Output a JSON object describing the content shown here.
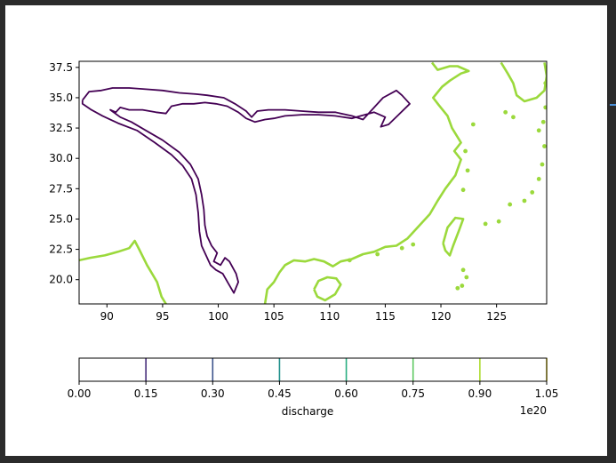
{
  "chart_data": {
    "type": "contour",
    "xlim": [
      87.5,
      129.5
    ],
    "ylim": [
      18.0,
      38.0
    ],
    "x_ticks": [
      90,
      95,
      100,
      105,
      110,
      115,
      120,
      125
    ],
    "y_ticks": [
      20.0,
      22.5,
      25.0,
      27.5,
      30.0,
      32.5,
      35.0,
      37.5
    ],
    "x_tick_labels": [
      "90",
      "95",
      "100",
      "105",
      "110",
      "115",
      "120",
      "125"
    ],
    "y_tick_labels": [
      "20.0",
      "22.5",
      "25.0",
      "27.5",
      "30.0",
      "32.5",
      "35.0",
      "37.5"
    ],
    "grid": false,
    "colorbar": {
      "label": "discharge",
      "offset_text": "1e20",
      "orientation": "horizontal",
      "ticks": [
        0.0,
        0.15,
        0.3,
        0.45,
        0.6,
        0.75,
        0.9,
        1.05
      ],
      "tick_labels": [
        "0.00",
        "0.15",
        "0.30",
        "0.45",
        "0.60",
        "0.75",
        "0.90",
        "1.05"
      ],
      "levels": [
        {
          "value": 0.15,
          "color": "#472d7b"
        },
        {
          "value": 0.3,
          "color": "#3b528b"
        },
        {
          "value": 0.45,
          "color": "#21918c"
        },
        {
          "value": 0.6,
          "color": "#28ae80"
        },
        {
          "value": 0.75,
          "color": "#5ec962"
        },
        {
          "value": 0.9,
          "color": "#addc30"
        },
        {
          "value": 1.05,
          "color": "#fde725"
        }
      ]
    },
    "contours": {
      "inland_basin": {
        "color": "#440154",
        "points": [
          [
            87.8,
            34.8
          ],
          [
            88.4,
            35.5
          ],
          [
            89.5,
            35.6
          ],
          [
            90.5,
            35.8
          ],
          [
            92,
            35.8
          ],
          [
            93.5,
            35.7
          ],
          [
            95,
            35.6
          ],
          [
            96.5,
            35.4
          ],
          [
            98,
            35.3
          ],
          [
            99,
            35.2
          ],
          [
            100.5,
            35
          ],
          [
            101.5,
            34.5
          ],
          [
            102.5,
            33.9
          ],
          [
            103,
            33.4
          ],
          [
            103.5,
            33.9
          ],
          [
            104.5,
            34.0
          ],
          [
            106,
            34.0
          ],
          [
            107.5,
            33.9
          ],
          [
            109,
            33.8
          ],
          [
            110.5,
            33.8
          ],
          [
            112,
            33.5
          ],
          [
            113,
            33.2
          ],
          [
            113.8,
            34.0
          ],
          [
            114.8,
            35.0
          ],
          [
            116.0,
            35.6
          ],
          [
            116.5,
            35.2
          ],
          [
            117.2,
            34.5
          ],
          [
            116.2,
            33.6
          ],
          [
            115.3,
            32.8
          ],
          [
            114.6,
            32.6
          ],
          [
            115.0,
            33.4
          ],
          [
            114.0,
            33.8
          ],
          [
            112.8,
            33.5
          ],
          [
            112.0,
            33.3
          ],
          [
            110.5,
            33.5
          ],
          [
            109.0,
            33.6
          ],
          [
            107.5,
            33.6
          ],
          [
            106.0,
            33.5
          ],
          [
            105.0,
            33.3
          ],
          [
            104.2,
            33.2
          ],
          [
            103.3,
            33.0
          ],
          [
            102.5,
            33.3
          ],
          [
            101.8,
            33.8
          ],
          [
            100.8,
            34.3
          ],
          [
            99.8,
            34.5
          ],
          [
            98.8,
            34.6
          ],
          [
            97.8,
            34.5
          ],
          [
            96.8,
            34.5
          ],
          [
            95.8,
            34.3
          ],
          [
            95.3,
            33.7
          ],
          [
            94.4,
            33.8
          ],
          [
            93.2,
            34.0
          ],
          [
            92.0,
            34.0
          ],
          [
            91.2,
            34.2
          ],
          [
            90.8,
            33.8
          ],
          [
            90.3,
            34.0
          ],
          [
            91.2,
            33.4
          ],
          [
            92.2,
            33.0
          ],
          [
            93.5,
            32.3
          ],
          [
            95.0,
            31.5
          ],
          [
            96.5,
            30.5
          ],
          [
            97.5,
            29.5
          ],
          [
            98.2,
            28.3
          ],
          [
            98.5,
            27.0
          ],
          [
            98.7,
            25.8
          ],
          [
            98.8,
            24.5
          ],
          [
            99.0,
            23.6
          ],
          [
            99.4,
            22.8
          ],
          [
            99.9,
            22.2
          ],
          [
            99.6,
            21.5
          ],
          [
            100.2,
            21.2
          ],
          [
            100.6,
            21.8
          ],
          [
            101.0,
            21.5
          ],
          [
            101.6,
            20.5
          ],
          [
            101.8,
            19.8
          ],
          [
            101.4,
            18.9
          ],
          [
            100.9,
            19.7
          ],
          [
            100.4,
            20.5
          ],
          [
            99.8,
            20.8
          ],
          [
            99.3,
            21.2
          ],
          [
            98.9,
            22.0
          ],
          [
            98.5,
            22.8
          ],
          [
            98.3,
            24.0
          ],
          [
            98.2,
            25.5
          ],
          [
            98.0,
            27.0
          ],
          [
            97.6,
            28.3
          ],
          [
            96.8,
            29.4
          ],
          [
            95.8,
            30.3
          ],
          [
            94.3,
            31.3
          ],
          [
            92.7,
            32.3
          ],
          [
            91.0,
            32.9
          ],
          [
            89.6,
            33.5
          ],
          [
            88.6,
            34.0
          ],
          [
            87.8,
            34.5
          ],
          [
            87.8,
            34.8
          ]
        ]
      },
      "coastline_west": {
        "color": "#9bd93c",
        "points": [
          [
            87.5,
            21.6
          ],
          [
            88.5,
            21.8
          ],
          [
            89.8,
            22.0
          ],
          [
            91.0,
            22.3
          ],
          [
            92.0,
            22.6
          ],
          [
            92.5,
            23.2
          ],
          [
            92.9,
            22.5
          ],
          [
            93.6,
            21.2
          ],
          [
            94.5,
            19.8
          ],
          [
            94.9,
            18.6
          ],
          [
            95.3,
            18.0
          ]
        ]
      },
      "coastline_south": {
        "color": "#9bd93c",
        "points": [
          [
            104.2,
            18.0
          ],
          [
            104.4,
            19.2
          ],
          [
            105.0,
            19.8
          ],
          [
            105.5,
            20.6
          ],
          [
            106.0,
            21.2
          ],
          [
            106.8,
            21.6
          ],
          [
            107.8,
            21.5
          ],
          [
            108.6,
            21.7
          ],
          [
            109.5,
            21.5
          ],
          [
            110.3,
            21.1
          ],
          [
            111.0,
            21.5
          ],
          [
            112.0,
            21.7
          ],
          [
            113.0,
            22.1
          ],
          [
            114.0,
            22.3
          ],
          [
            115.0,
            22.7
          ],
          [
            116.0,
            22.8
          ],
          [
            117.0,
            23.4
          ],
          [
            118.0,
            24.4
          ],
          [
            119.0,
            25.4
          ],
          [
            119.7,
            26.5
          ],
          [
            120.4,
            27.5
          ],
          [
            121.3,
            28.6
          ],
          [
            121.8,
            29.9
          ],
          [
            121.2,
            30.6
          ],
          [
            121.8,
            31.3
          ],
          [
            121.0,
            32.5
          ],
          [
            120.6,
            33.5
          ],
          [
            119.8,
            34.4
          ],
          [
            119.3,
            35.0
          ],
          [
            120.1,
            35.9
          ],
          [
            120.8,
            36.4
          ],
          [
            121.8,
            37.0
          ],
          [
            122.5,
            37.2
          ],
          [
            121.5,
            37.6
          ],
          [
            120.8,
            37.6
          ],
          [
            119.7,
            37.3
          ],
          [
            119.2,
            37.9
          ]
        ]
      },
      "hainan": {
        "color": "#9bd93c",
        "points": [
          [
            108.6,
            19.2
          ],
          [
            109.0,
            19.9
          ],
          [
            109.8,
            20.2
          ],
          [
            110.6,
            20.1
          ],
          [
            111.0,
            19.6
          ],
          [
            110.5,
            18.8
          ],
          [
            109.6,
            18.3
          ],
          [
            108.9,
            18.6
          ],
          [
            108.6,
            19.2
          ]
        ]
      },
      "taiwan": {
        "color": "#9bd93c",
        "points": [
          [
            120.2,
            23.0
          ],
          [
            120.6,
            24.3
          ],
          [
            121.3,
            25.1
          ],
          [
            122.0,
            25.0
          ],
          [
            121.6,
            24.0
          ],
          [
            121.1,
            22.8
          ],
          [
            120.8,
            22.0
          ],
          [
            120.4,
            22.4
          ],
          [
            120.2,
            23.0
          ]
        ]
      },
      "korea_coast": {
        "color": "#9bd93c",
        "points": [
          [
            125.4,
            37.9
          ],
          [
            126.0,
            37.0
          ],
          [
            126.5,
            36.2
          ],
          [
            126.8,
            35.2
          ],
          [
            127.5,
            34.7
          ],
          [
            128.6,
            35.0
          ],
          [
            129.3,
            35.6
          ],
          [
            129.5,
            36.8
          ],
          [
            129.3,
            37.9
          ]
        ]
      },
      "coastal_islands": {
        "color": "#9bd93c",
        "points": [
          [
            122.9,
            32.8
          ],
          [
            122.2,
            30.6
          ],
          [
            122.4,
            29.0
          ],
          [
            122.0,
            27.4
          ],
          [
            121.9,
            19.5
          ],
          [
            122.3,
            20.2
          ],
          [
            121.5,
            19.3
          ],
          [
            122.0,
            20.8
          ],
          [
            124.0,
            24.6
          ],
          [
            125.2,
            24.8
          ],
          [
            126.2,
            26.2
          ],
          [
            127.5,
            26.5
          ],
          [
            128.2,
            27.2
          ],
          [
            128.8,
            28.3
          ],
          [
            129.1,
            29.5
          ],
          [
            129.3,
            31.0
          ],
          [
            129.2,
            33.0
          ],
          [
            128.8,
            32.3
          ],
          [
            129.4,
            34.2
          ],
          [
            126.5,
            33.4
          ],
          [
            125.8,
            33.8
          ],
          [
            129.4,
            36.2
          ],
          [
            117.5,
            22.9
          ],
          [
            114.3,
            22.1
          ],
          [
            116.5,
            22.6
          ],
          [
            111.8,
            21.6
          ]
        ]
      }
    }
  }
}
